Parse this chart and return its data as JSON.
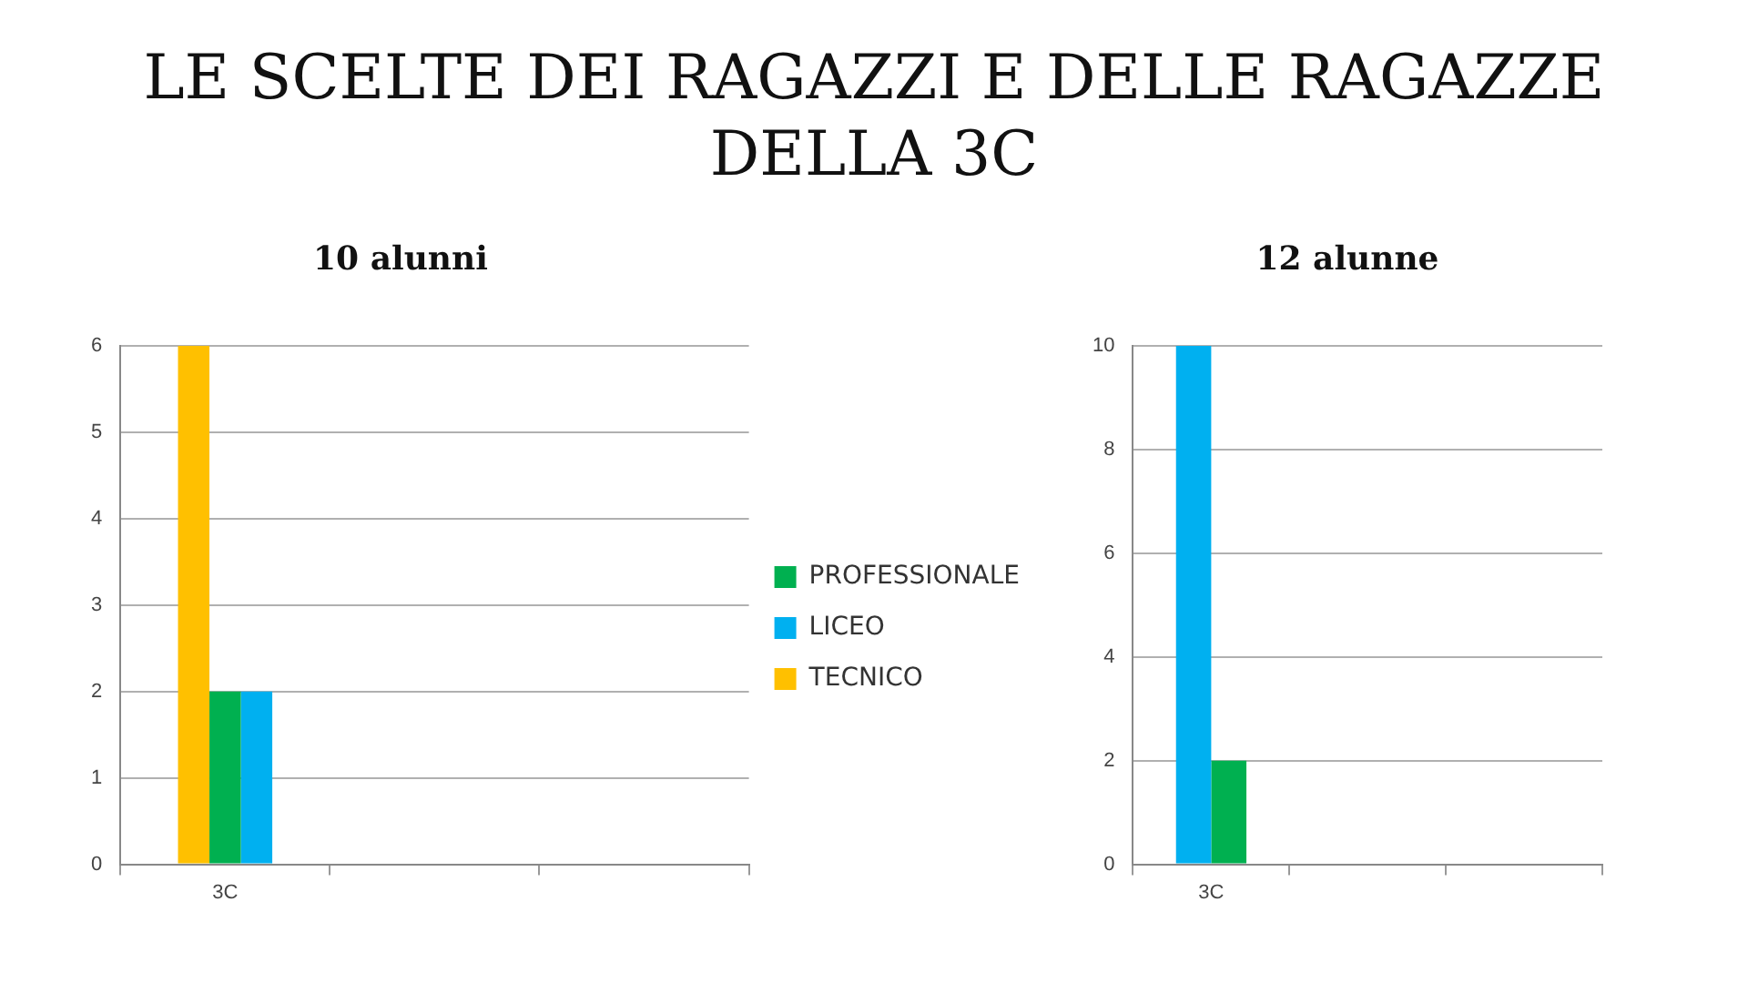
{
  "chart_data": [
    {
      "type": "bar",
      "title": "10 alunni",
      "annotations": [
        "LE SCELTE DEI RAGAZZI E DELLE RAGAZZE DELLA 3C"
      ],
      "categories": [
        "3C",
        null,
        null
      ],
      "series": [
        {
          "name": "TECNICO",
          "color": "#ffc000",
          "values": [
            6,
            null,
            null
          ]
        },
        {
          "name": "PROFESSIONALE",
          "color": "#00b050",
          "values": [
            2,
            null,
            null
          ]
        },
        {
          "name": "LICEO",
          "color": "#00b0f0",
          "values": [
            2,
            null,
            null
          ]
        }
      ],
      "ylim": [
        0,
        6
      ],
      "yticks": [
        0,
        1,
        2,
        3,
        4,
        5,
        6
      ],
      "grid": "y",
      "legend": "right"
    },
    {
      "type": "bar",
      "title": "12 alunne",
      "categories": [
        "3C",
        null,
        null
      ],
      "series": [
        {
          "color": "#00b0f0",
          "values": [
            10,
            null,
            null
          ]
        },
        {
          "color": "#00b050",
          "values": [
            2,
            null,
            null
          ]
        }
      ],
      "ylim": [
        0,
        10
      ],
      "yticks": [
        0,
        2,
        4,
        6,
        8,
        10
      ],
      "grid": "y"
    }
  ]
}
